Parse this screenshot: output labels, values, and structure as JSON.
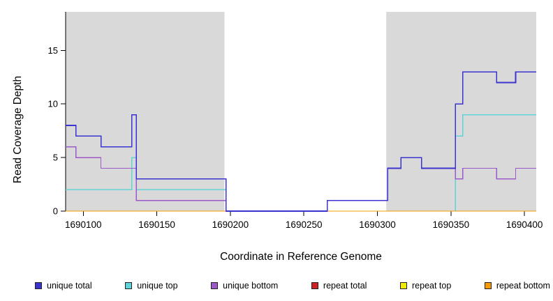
{
  "chart_data": {
    "type": "line",
    "step": "step-after",
    "title": "",
    "xlabel": "Coordinate in Reference Genome",
    "ylabel": "Read Coverage Depth",
    "x_range": [
      1690088,
      1690408
    ],
    "y_range": [
      0,
      18.6
    ],
    "x_ticks": [
      1690100,
      1690150,
      1690200,
      1690250,
      1690300,
      1690350,
      1690400
    ],
    "y_ticks": [
      0,
      5,
      10,
      15
    ],
    "grid": false,
    "background_color": "#ffffff",
    "highlight": {
      "color": "#d9d9d9",
      "regions": [
        [
          1690088,
          1690196
        ],
        [
          1690306,
          1690408
        ]
      ]
    },
    "legend_position": "bottom",
    "series": [
      {
        "name": "unique total",
        "color": "#3b33cf",
        "width": 1.6,
        "points": [
          [
            1690088,
            8
          ],
          [
            1690095,
            7
          ],
          [
            1690112,
            6
          ],
          [
            1690133,
            9
          ],
          [
            1690136,
            3
          ],
          [
            1690197,
            0
          ],
          [
            1690266,
            1
          ],
          [
            1690307,
            4
          ],
          [
            1690316,
            5
          ],
          [
            1690330,
            4
          ],
          [
            1690353,
            10
          ],
          [
            1690358,
            13
          ],
          [
            1690381,
            12
          ],
          [
            1690394,
            13
          ]
        ]
      },
      {
        "name": "unique top",
        "color": "#5fd3d8",
        "width": 1.3,
        "points": [
          [
            1690088,
            2
          ],
          [
            1690133,
            5
          ],
          [
            1690136,
            2
          ],
          [
            1690197,
            0
          ],
          [
            1690353,
            7
          ],
          [
            1690358,
            9
          ]
        ]
      },
      {
        "name": "unique bottom",
        "color": "#9b59c9",
        "width": 1.3,
        "points": [
          [
            1690088,
            6
          ],
          [
            1690095,
            5
          ],
          [
            1690112,
            4
          ],
          [
            1690136,
            1
          ],
          [
            1690197,
            0
          ],
          [
            1690266,
            1
          ],
          [
            1690307,
            4
          ],
          [
            1690316,
            5
          ],
          [
            1690330,
            4
          ],
          [
            1690353,
            3
          ],
          [
            1690358,
            4
          ],
          [
            1690381,
            3
          ],
          [
            1690394,
            4
          ]
        ]
      },
      {
        "name": "repeat total",
        "color": "#cc2222",
        "width": 1.3,
        "points": [
          [
            1690088,
            0
          ]
        ]
      },
      {
        "name": "repeat top",
        "color": "#f2ea0a",
        "width": 1.3,
        "points": [
          [
            1690088,
            0
          ]
        ]
      },
      {
        "name": "repeat bottom",
        "color": "#f59b00",
        "width": 1.3,
        "points": [
          [
            1690088,
            0
          ]
        ]
      }
    ],
    "draw_order": [
      3,
      4,
      1,
      5,
      2,
      0
    ],
    "legend": [
      "unique total",
      "unique top",
      "unique bottom",
      "repeat total",
      "repeat top",
      "repeat bottom"
    ]
  }
}
